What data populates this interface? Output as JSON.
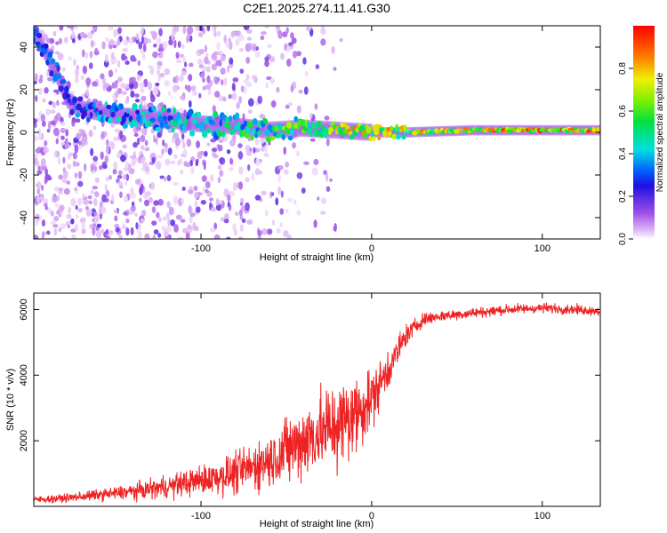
{
  "title": "C2E1.2025.274.11.41.G30",
  "colors": {
    "snr_line": "#ee2222",
    "frame": "#000000",
    "background": "#ffffff"
  },
  "chart_data": [
    {
      "type": "heatmap",
      "title": "C2E1.2025.274.11.41.G30",
      "xlabel": "Height of straight line (km)",
      "ylabel": "Frequency (Hz)",
      "xlim": [
        -198,
        134
      ],
      "ylim": [
        -50,
        50
      ],
      "xticks": [
        -100,
        0,
        100
      ],
      "xtick_labels": [
        "-100",
        "0",
        "100"
      ],
      "yticks": [
        -40,
        -20,
        0,
        20,
        40
      ],
      "ytick_labels": [
        "-40",
        "-20",
        "0",
        "20",
        "40"
      ],
      "colorbar": {
        "label": "Normalized spectral amplitude",
        "range": [
          0,
          1
        ],
        "ticks": [
          0.0,
          0.2,
          0.4,
          0.6,
          0.8
        ],
        "tick_labels": [
          "0.0",
          "0.2",
          "0.4",
          "0.6",
          "0.8"
        ]
      },
      "ridge": {
        "description_x": [
          -198,
          -185,
          -178,
          -170,
          -150,
          -120,
          -100,
          -80,
          -60,
          -40,
          -20,
          0,
          20,
          60,
          100,
          134
        ],
        "center_hz": [
          48,
          28,
          15,
          11,
          8,
          6,
          4,
          3,
          1,
          2,
          1,
          0,
          0,
          1,
          1,
          1
        ],
        "peak_amplitude": [
          0.3,
          0.35,
          0.3,
          0.35,
          0.4,
          0.45,
          0.45,
          0.5,
          0.6,
          0.65,
          0.75,
          0.85,
          0.75,
          0.8,
          0.9,
          0.85
        ]
      }
    },
    {
      "type": "line",
      "xlabel": "Height of straight line (km)",
      "ylabel": "SNR (10 * v/v)",
      "xlim": [
        -198,
        134
      ],
      "ylim": [
        0,
        6500
      ],
      "xticks": [
        -100,
        0,
        100
      ],
      "xtick_labels": [
        "-100",
        "0",
        "100"
      ],
      "yticks": [
        2000,
        4000,
        6000
      ],
      "ytick_labels": [
        "2000",
        "4000",
        "6000"
      ],
      "series": [
        {
          "name": "SNR",
          "envelope_x": [
            -198,
            -180,
            -160,
            -140,
            -120,
            -100,
            -80,
            -60,
            -40,
            -30,
            -20,
            -10,
            0,
            10,
            20,
            30,
            40,
            60,
            80,
            100,
            120,
            134
          ],
          "mean_y": [
            200,
            250,
            350,
            450,
            600,
            800,
            1000,
            1400,
            2000,
            2300,
            2500,
            2800,
            3300,
            4200,
            5200,
            5700,
            5800,
            5900,
            6000,
            6050,
            6000,
            5950
          ],
          "spread_y": [
            150,
            180,
            250,
            350,
            500,
            650,
            900,
            1200,
            1700,
            1900,
            2000,
            1900,
            1300,
            900,
            500,
            300,
            250,
            230,
            230,
            220,
            220,
            200
          ]
        }
      ]
    }
  ]
}
